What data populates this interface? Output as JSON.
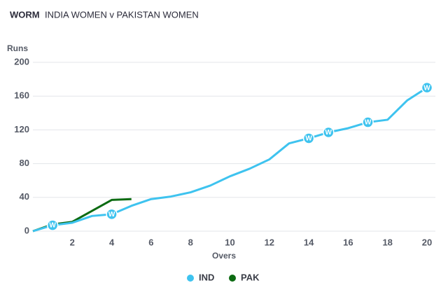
{
  "chart_data": {
    "type": "line",
    "title": "WORM",
    "subtitle": "INDIA WOMEN v PAKISTAN WOMEN",
    "y_label": "Runs",
    "x_label": "Overs",
    "x": [
      0,
      1,
      2,
      3,
      4,
      5,
      6,
      7,
      8,
      9,
      10,
      11,
      12,
      13,
      14,
      15,
      16,
      17,
      18,
      19,
      20
    ],
    "xlim": [
      0,
      20
    ],
    "xticks": [
      2,
      4,
      6,
      8,
      10,
      12,
      14,
      16,
      18,
      20
    ],
    "ylim": [
      0,
      200
    ],
    "yticks": [
      0,
      40,
      80,
      120,
      160,
      200
    ],
    "grid": true,
    "legend": "bottom",
    "wicket_label": "W",
    "series": [
      {
        "name": "IND",
        "color": "#3ec3ef",
        "values": [
          0,
          7,
          10,
          18,
          20,
          30,
          38,
          41,
          46,
          54,
          65,
          74,
          85,
          104,
          110,
          117,
          122,
          129,
          132,
          155,
          170
        ],
        "wickets": [
          1,
          4,
          14,
          15,
          17,
          20
        ]
      },
      {
        "name": "PAK",
        "color": "#0c6b12",
        "values": [
          0,
          8,
          11,
          24,
          37,
          38,
          null,
          null,
          null,
          null,
          null,
          null,
          null,
          null,
          null,
          null,
          null,
          null,
          null,
          null,
          null
        ],
        "wickets": []
      }
    ]
  }
}
